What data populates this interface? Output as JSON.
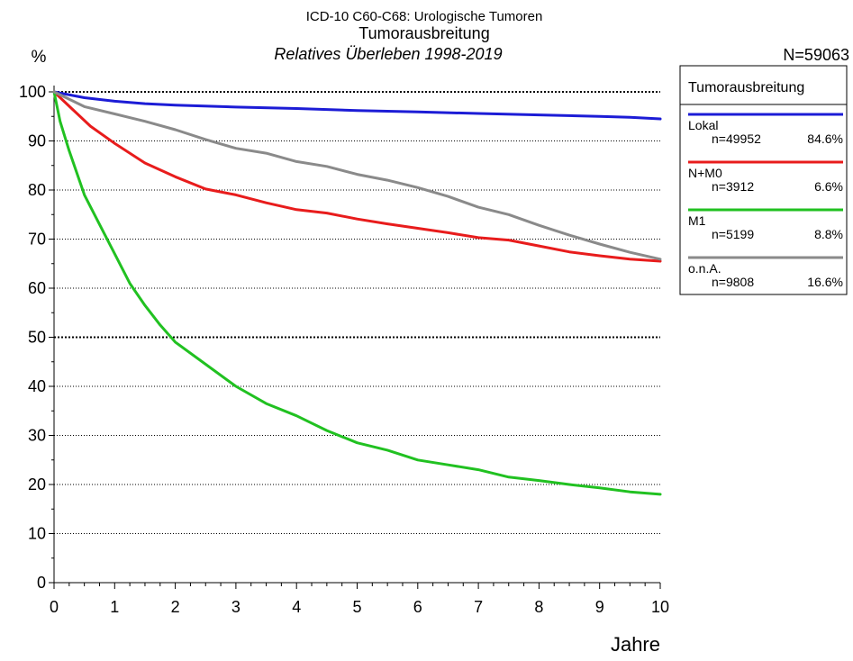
{
  "chart_data": {
    "type": "line",
    "title_line1": "ICD-10 C60-C68: Urologische Tumoren",
    "title_line2": "Tumorausbreitung",
    "subtitle": "Relatives Überleben 1998-2019",
    "ylabel": "%",
    "xlabel": "Jahre",
    "n_total": "N=59063",
    "xlim": [
      0,
      10
    ],
    "ylim": [
      0,
      100
    ],
    "x_ticks": [
      "0",
      "1",
      "2",
      "3",
      "4",
      "5",
      "6",
      "7",
      "8",
      "9",
      "10"
    ],
    "y_ticks": [
      "0",
      "10",
      "20",
      "30",
      "40",
      "50",
      "60",
      "70",
      "80",
      "90",
      "100"
    ],
    "bold_gridlines_at": [
      50,
      100
    ],
    "grid": true,
    "legend": {
      "title": "Tumorausbreitung",
      "placement": "right"
    },
    "series": [
      {
        "name": "Lokal",
        "n": "n=49952",
        "percent": "84.6%",
        "color": "#1c1cd6",
        "points": [
          [
            0,
            100
          ],
          [
            0.5,
            98.8
          ],
          [
            1,
            98.1
          ],
          [
            1.5,
            97.6
          ],
          [
            2,
            97.3
          ],
          [
            3,
            96.9
          ],
          [
            4,
            96.6
          ],
          [
            5,
            96.2
          ],
          [
            6,
            95.9
          ],
          [
            7,
            95.6
          ],
          [
            8,
            95.3
          ],
          [
            9,
            95.0
          ],
          [
            9.5,
            94.8
          ],
          [
            10,
            94.5
          ]
        ]
      },
      {
        "name": "N+M0",
        "n": "n=3912",
        "percent": "6.6%",
        "color": "#e81c1c",
        "points": [
          [
            0,
            100
          ],
          [
            0.3,
            96.5
          ],
          [
            0.6,
            93
          ],
          [
            1,
            89.5
          ],
          [
            1.5,
            85.5
          ],
          [
            2,
            82.7
          ],
          [
            2.5,
            80.2
          ],
          [
            3,
            79
          ],
          [
            3.5,
            77.4
          ],
          [
            4,
            76
          ],
          [
            4.5,
            75.3
          ],
          [
            5,
            74.1
          ],
          [
            5.5,
            73.1
          ],
          [
            6,
            72.2
          ],
          [
            6.5,
            71.3
          ],
          [
            7,
            70.3
          ],
          [
            7.5,
            69.8
          ],
          [
            8,
            68.6
          ],
          [
            8.5,
            67.4
          ],
          [
            9,
            66.6
          ],
          [
            9.5,
            65.9
          ],
          [
            10,
            65.5
          ]
        ]
      },
      {
        "name": "M1",
        "n": "n=5199",
        "percent": "8.8%",
        "color": "#21c121",
        "points": [
          [
            0,
            100
          ],
          [
            0.1,
            94
          ],
          [
            0.25,
            88
          ],
          [
            0.5,
            79
          ],
          [
            0.75,
            73
          ],
          [
            1,
            67
          ],
          [
            1.25,
            61
          ],
          [
            1.5,
            56.5
          ],
          [
            1.75,
            52.5
          ],
          [
            2,
            49
          ],
          [
            2.5,
            44.5
          ],
          [
            3,
            40
          ],
          [
            3.5,
            36.5
          ],
          [
            4,
            34
          ],
          [
            4.5,
            31
          ],
          [
            5,
            28.5
          ],
          [
            5.5,
            27
          ],
          [
            6,
            25
          ],
          [
            6.5,
            24
          ],
          [
            7,
            23
          ],
          [
            7.5,
            21.5
          ],
          [
            8,
            20.8
          ],
          [
            8.5,
            20
          ],
          [
            9,
            19.3
          ],
          [
            9.5,
            18.5
          ],
          [
            10,
            18
          ]
        ]
      },
      {
        "name": "o.n.A.",
        "n": "n=9808",
        "percent": "16.6%",
        "color": "#8a8a8a",
        "points": [
          [
            0,
            100
          ],
          [
            0.5,
            97
          ],
          [
            1,
            95.5
          ],
          [
            1.5,
            94
          ],
          [
            2,
            92.3
          ],
          [
            2.5,
            90.3
          ],
          [
            3,
            88.5
          ],
          [
            3.5,
            87.5
          ],
          [
            4,
            85.8
          ],
          [
            4.5,
            84.8
          ],
          [
            5,
            83.2
          ],
          [
            5.5,
            82
          ],
          [
            6,
            80.5
          ],
          [
            6.5,
            78.7
          ],
          [
            7,
            76.5
          ],
          [
            7.5,
            75
          ],
          [
            8,
            72.8
          ],
          [
            8.5,
            70.8
          ],
          [
            9,
            69
          ],
          [
            9.5,
            67.3
          ],
          [
            10,
            65.9
          ]
        ]
      }
    ]
  }
}
